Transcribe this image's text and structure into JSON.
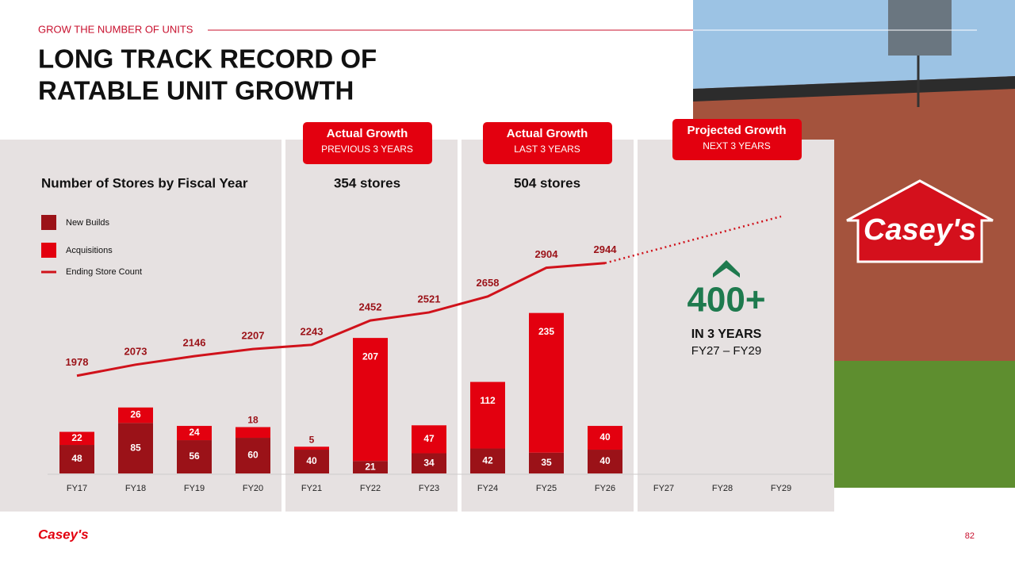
{
  "header": {
    "kicker": "GROW THE NUMBER OF UNITS",
    "title_lines": [
      "LONG TRACK RECORD OF",
      "RATABLE UNIT GROWTH"
    ]
  },
  "callouts": [
    {
      "title": "Actual Growth",
      "subtitle": "PREVIOUS 3 YEARS",
      "total": "354 stores"
    },
    {
      "title": "Actual Growth",
      "subtitle": "LAST 3 YEARS",
      "total": "504 stores"
    },
    {
      "title": "Projected Growth",
      "subtitle": "NEXT 3 YEARS"
    }
  ],
  "projection_note": {
    "big": "400+",
    "line1": "IN 3 YEARS",
    "line2": "FY27 – FY29"
  },
  "chart_data": {
    "type": "bar",
    "title": "Number of Stores by Fiscal Year",
    "categories": [
      "FY17",
      "FY18",
      "FY19",
      "FY20",
      "FY21",
      "FY22",
      "FY23",
      "FY24",
      "FY25",
      "FY26",
      "FY27",
      "FY28",
      "FY29"
    ],
    "ylim": [
      0,
      463
    ],
    "y2lim": [
      1140,
      3500
    ],
    "series": [
      {
        "name": "New Builds",
        "color": "#9b1218",
        "values": [
          48,
          85,
          56,
          60,
          40,
          21,
          34,
          42,
          35,
          40,
          null,
          null,
          null
        ]
      },
      {
        "name": "Acquisitions",
        "color": "#e3000f",
        "values": [
          22,
          26,
          24,
          18,
          5,
          207,
          47,
          112,
          235,
          40,
          null,
          null,
          null
        ]
      },
      {
        "name": "Ending Store Count",
        "type": "line",
        "axis": "y2",
        "color": "#d0121b",
        "values": [
          1978,
          2073,
          2146,
          2207,
          2243,
          2452,
          2521,
          2658,
          2904,
          2944,
          null,
          null,
          null
        ]
      }
    ],
    "projection": {
      "axis": "y2",
      "color": "#d0121b",
      "style": "dotted",
      "values": [
        null,
        null,
        null,
        null,
        null,
        null,
        null,
        null,
        null,
        2944,
        3077,
        3211,
        3344
      ]
    }
  },
  "footer": {
    "logo": "Casey's",
    "page": "82"
  },
  "photo": {
    "sign": "Casey's"
  }
}
